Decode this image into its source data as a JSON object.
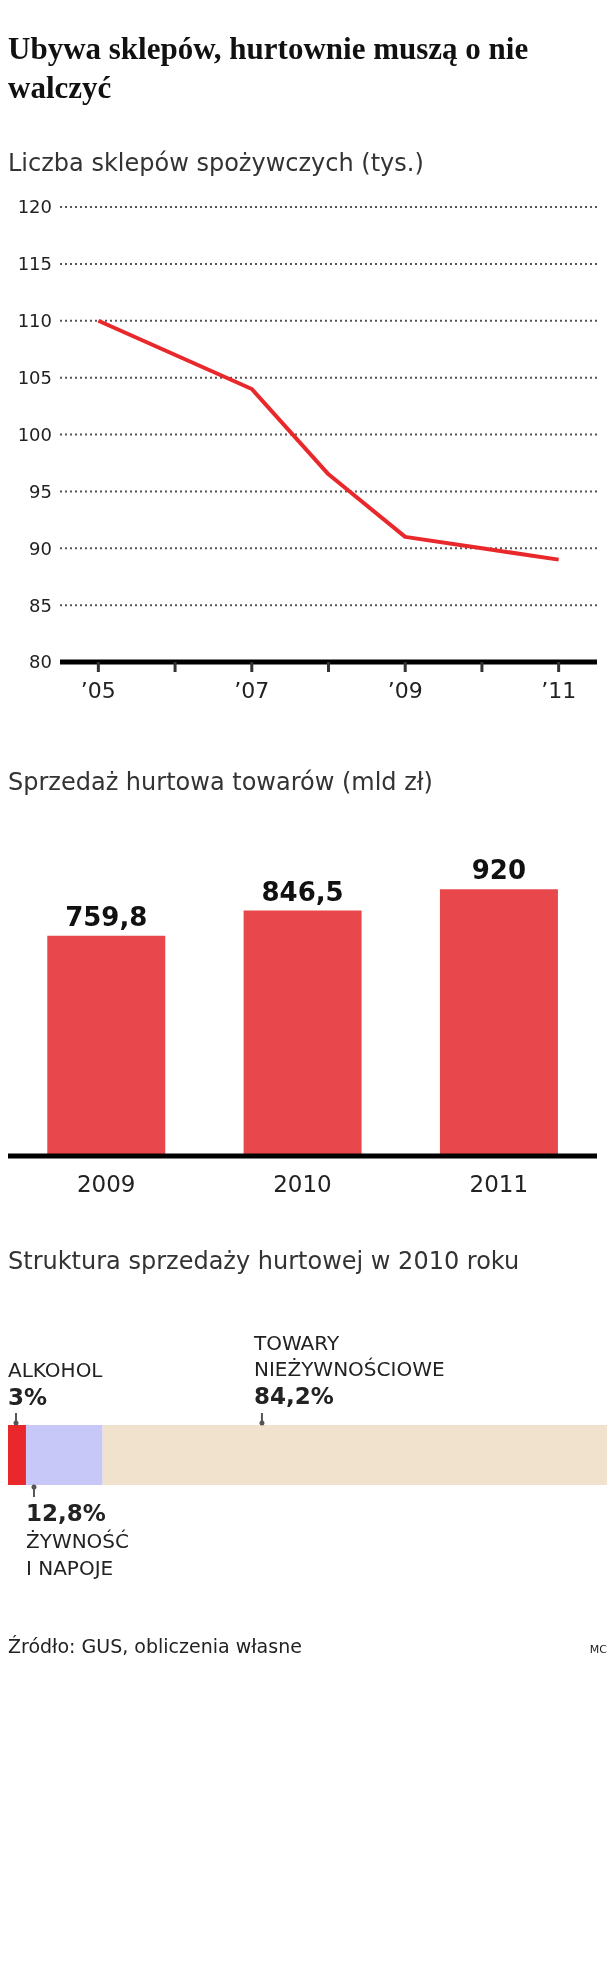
{
  "chart_data": [
    {
      "type": "line",
      "title": "Ubywa sklepów, hurtownie muszą o nie walczyć",
      "subtitle": "Liczba sklepów spożywczych (tys.)",
      "x": [
        2005,
        2007,
        2008,
        2009,
        2010,
        2011
      ],
      "series": [
        {
          "color": "#e8282b",
          "values": [
            110,
            104,
            96.5,
            91,
            90,
            89
          ]
        }
      ],
      "xlim": [
        2004.5,
        2011.5
      ],
      "xticks": [
        {
          "value": 2005,
          "label": "’05"
        },
        {
          "value": 2006,
          "label": null
        },
        {
          "value": 2007,
          "label": "’07"
        },
        {
          "value": 2008,
          "label": null
        },
        {
          "value": 2009,
          "label": "’09"
        },
        {
          "value": 2010,
          "label": null
        },
        {
          "value": 2011,
          "label": "’11"
        }
      ],
      "ylim": [
        80,
        120
      ],
      "yticks": [
        80,
        85,
        90,
        95,
        100,
        105,
        110,
        115,
        120
      ],
      "grid": "y",
      "marker": "none",
      "line_style": "solid"
    },
    {
      "type": "bar",
      "title": "Sprzedaż hurtowa towarów (mld zł)",
      "categories": [
        "2009",
        "2010",
        "2011"
      ],
      "values": [
        759.8,
        846.5,
        920
      ],
      "value_labels": [
        "759,8",
        "846,5",
        "920"
      ],
      "color": "#e8484b",
      "tick_labels": "x"
    },
    {
      "type": "bar",
      "title": "Struktura sprzedaży hurtowej w 2010 roku",
      "orientation": "horizontal",
      "stacked": true,
      "categories": [
        null
      ],
      "series": [
        {
          "name": "ALKOHOL",
          "color": "#e8282b",
          "values": [
            3
          ],
          "value_labels": [
            "3%"
          ]
        },
        {
          "name": "ŻYWNOŚĆ I NAPOJE",
          "color": "#c8c8f8",
          "values": [
            12.8
          ],
          "value_labels": [
            "12,8%"
          ]
        },
        {
          "name": "TOWARY NIEŻYWNOŚCIOWE",
          "color": "#f0e2cc",
          "values": [
            84.2
          ],
          "value_labels": [
            "84,2%"
          ]
        }
      ],
      "tick_labels": false,
      "annotations": [
        "Źródło: GUS, obliczenia własne",
        "MC"
      ]
    }
  ]
}
